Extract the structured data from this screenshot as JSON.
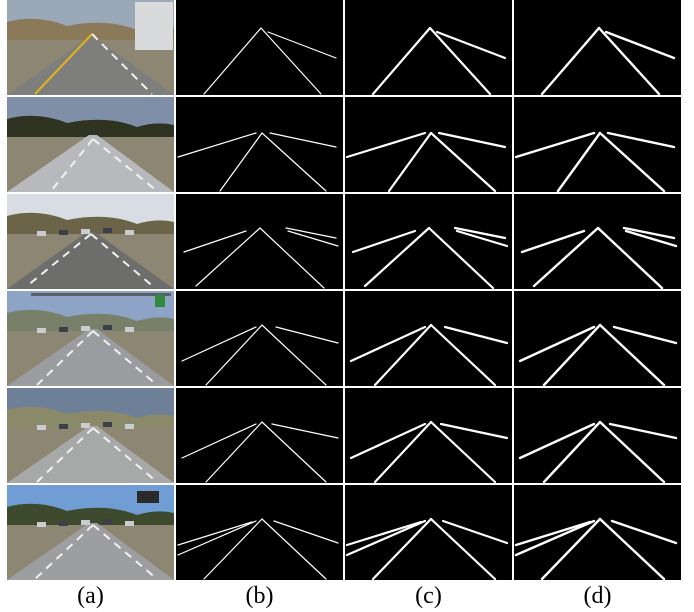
{
  "figure": {
    "columns": [
      {
        "id": "a",
        "label": "(a)",
        "kind": "photo"
      },
      {
        "id": "b",
        "label": "(b)",
        "kind": "mask"
      },
      {
        "id": "c",
        "label": "(c)",
        "kind": "mask"
      },
      {
        "id": "d",
        "label": "(d)",
        "kind": "mask"
      }
    ],
    "rows": [
      {
        "id": "row-1",
        "scene": "desert-highway-truck"
      },
      {
        "id": "row-2",
        "scene": "highway-bright-road"
      },
      {
        "id": "row-3",
        "scene": "highway-traffic-hills"
      },
      {
        "id": "row-4",
        "scene": "highway-gantry-sign"
      },
      {
        "id": "row-5",
        "scene": "highway-cloudy"
      },
      {
        "id": "row-6",
        "scene": "highway-billboard"
      }
    ]
  }
}
